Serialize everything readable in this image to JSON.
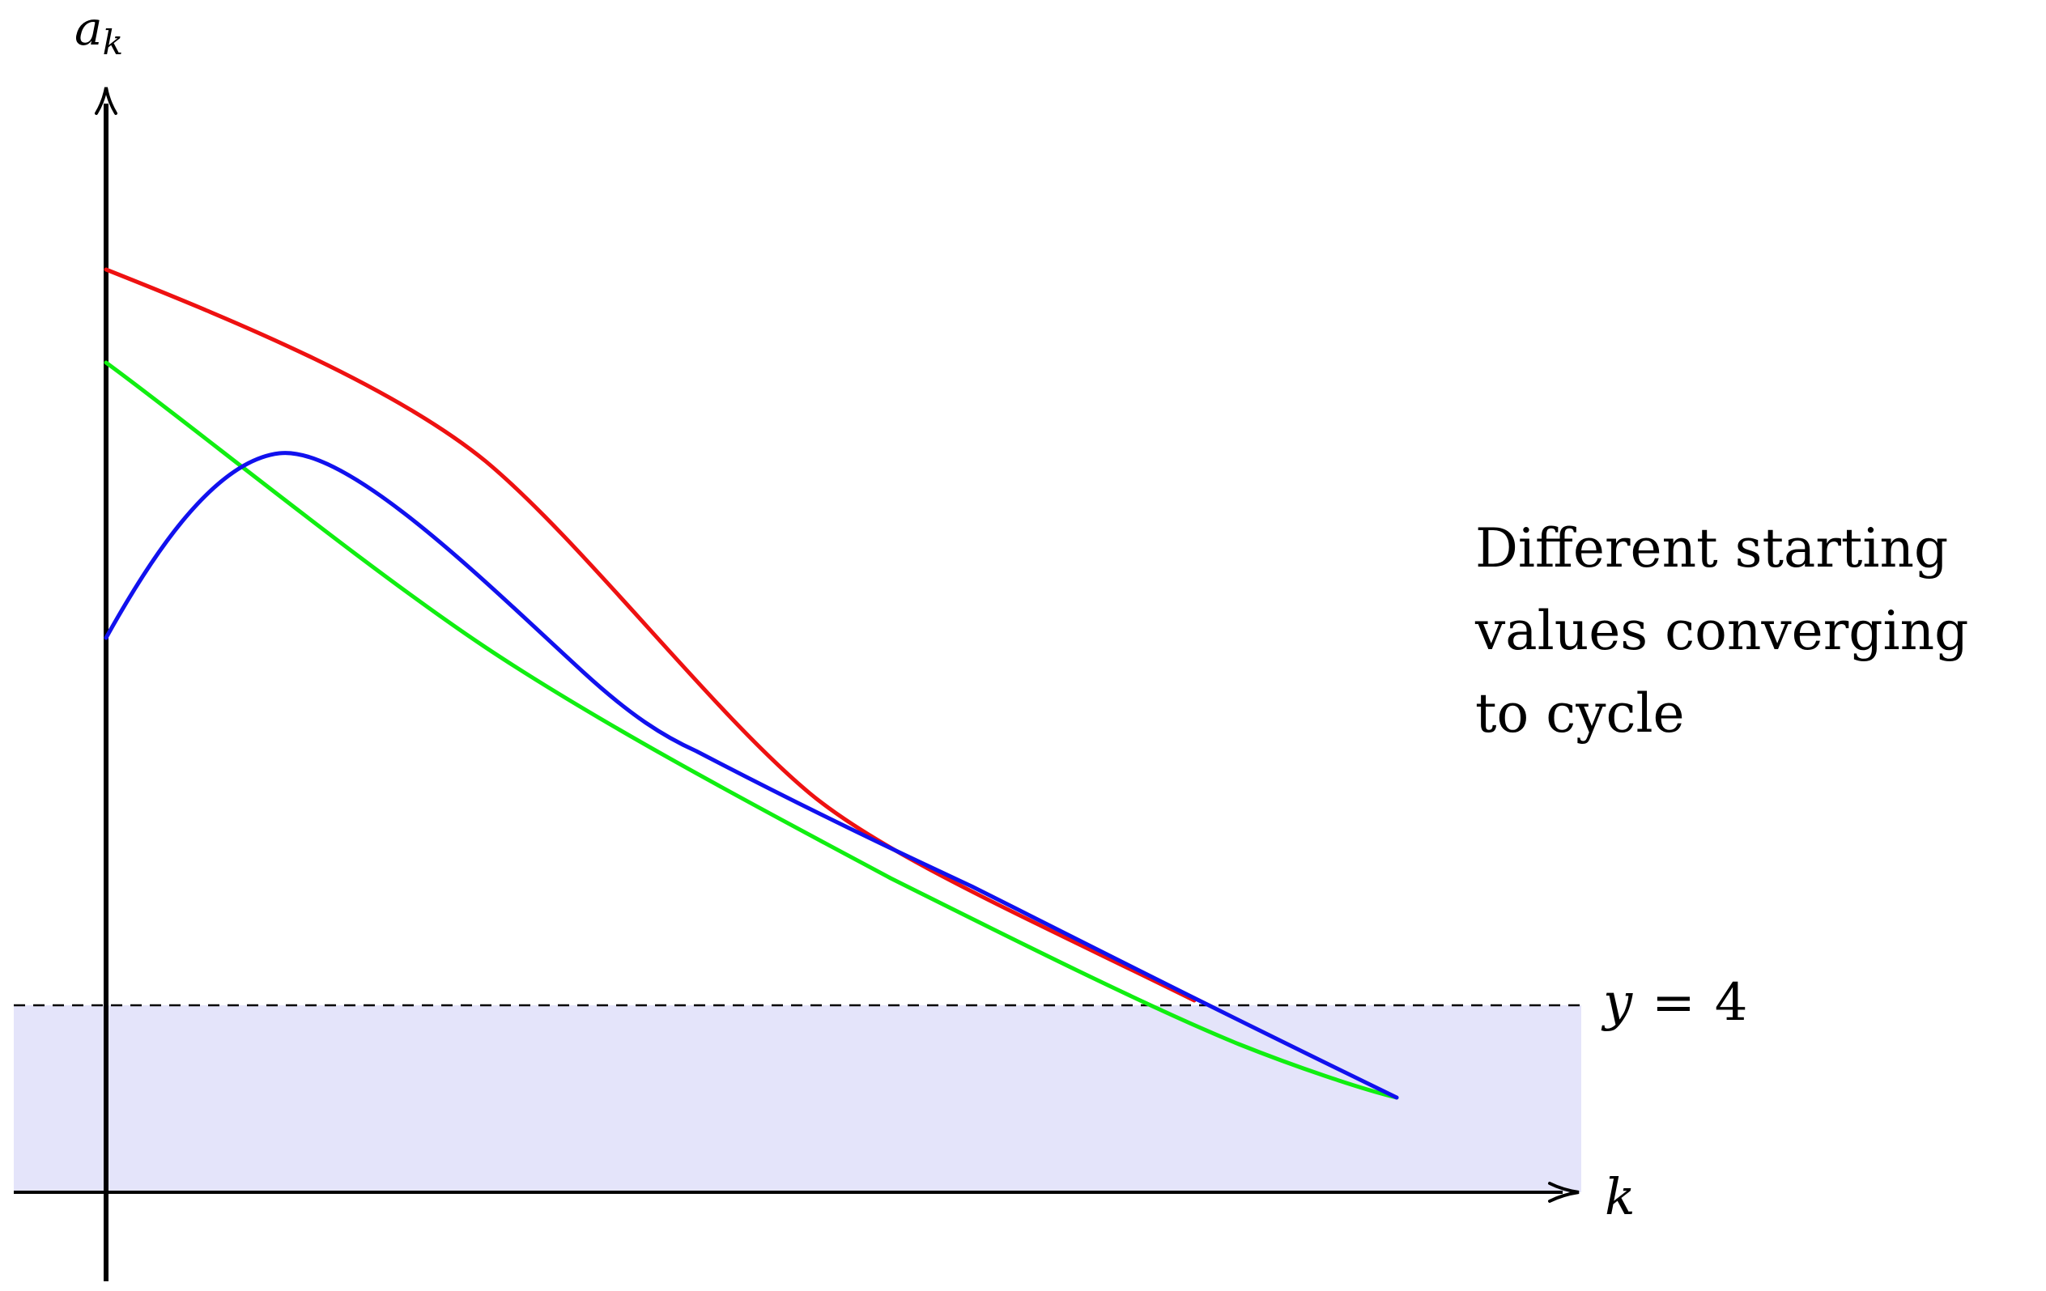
{
  "axes": {
    "y_label_base": "a",
    "y_label_sub": "k",
    "x_label": "k"
  },
  "threshold": {
    "label_var": "y",
    "label_eq": "=",
    "label_val": "4",
    "value": 4
  },
  "annotation": {
    "lines": [
      "Different starting",
      "values converging",
      "to cycle"
    ]
  },
  "colors": {
    "red_curve": "#ee1111",
    "green_curve": "#11ee11",
    "blue_curve": "#1111ee",
    "band_fill": "#e4e4fa",
    "axis": "#000000"
  },
  "curves": [
    {
      "name": "red-curve",
      "color_key": "red_curve"
    },
    {
      "name": "green-curve",
      "color_key": "green_curve"
    },
    {
      "name": "blue-curve",
      "color_key": "blue_curve"
    }
  ]
}
